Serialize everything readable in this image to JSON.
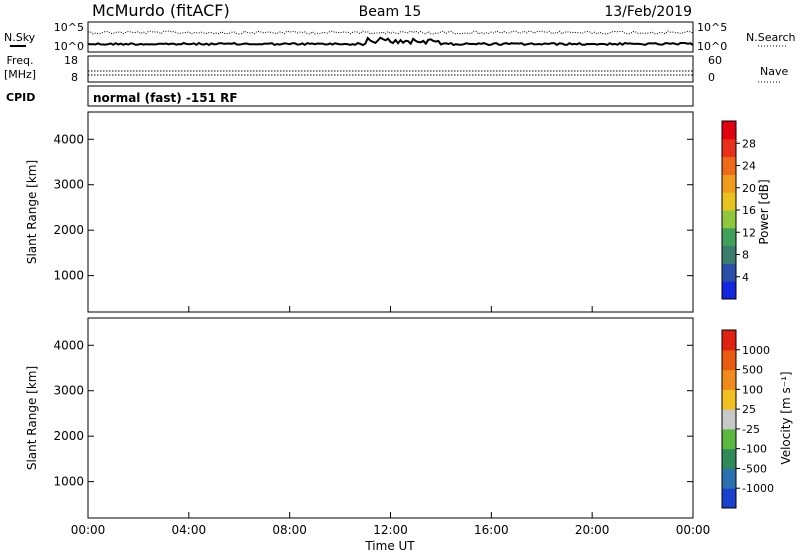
{
  "header": {
    "title": "McMurdo (fitACF)",
    "beam": "Beam 15",
    "date": "13/Feb/2019"
  },
  "top_panels": {
    "nsky_label": "N.Sky",
    "nsearch_label": "N.Search",
    "noise_ticks": [
      "10^5",
      "10^0"
    ],
    "freq_label_1": "Freq.",
    "freq_label_2": "[MHz]",
    "freq_ticks": [
      "18",
      "8"
    ],
    "nave_label": "Nave",
    "nave_ticks": [
      "60",
      "0"
    ],
    "cpid_label": "CPID",
    "cpid_text": "normal (fast) -151 RF"
  },
  "chart_data": [
    {
      "type": "heatmap",
      "name": "power",
      "ylabel": "Slant Range [km]",
      "ylim": [
        200,
        4600
      ],
      "yticks": [
        1000,
        2000,
        3000,
        4000
      ],
      "xlim": [
        0,
        24
      ],
      "colorbar_label": "Power [dB]",
      "colorbar_ticks": [
        "4",
        "8",
        "12",
        "16",
        "20",
        "24",
        "28"
      ],
      "colorbar_colors": [
        "#1426e0",
        "#2a4fa8",
        "#3a7d6c",
        "#3fa05a",
        "#8fc83c",
        "#e8c21e",
        "#f09a1e",
        "#ee6a1a",
        "#e8301a",
        "#e00010"
      ],
      "grid": false
    },
    {
      "type": "heatmap",
      "name": "velocity",
      "ylabel": "Slant Range [km]",
      "ylim": [
        200,
        4600
      ],
      "yticks": [
        1000,
        2000,
        3000,
        4000
      ],
      "xlim": [
        0,
        24
      ],
      "colorbar_label": "Velocity [m s⁻¹]",
      "colorbar_ticks": [
        "1000",
        "500",
        "100",
        "25",
        "-25",
        "-100",
        "-500",
        "-1000"
      ],
      "colorbar_colors": [
        "#1a40d0",
        "#2a70b0",
        "#2f8a5a",
        "#5ab840",
        "#c8c8c8",
        "#f0c020",
        "#f08a1a",
        "#e85a10",
        "#e02010"
      ],
      "grid": false
    }
  ],
  "xaxis": {
    "ticks": [
      "00:00",
      "04:00",
      "08:00",
      "12:00",
      "16:00",
      "20:00",
      "00:00"
    ],
    "label": "Time UT"
  }
}
